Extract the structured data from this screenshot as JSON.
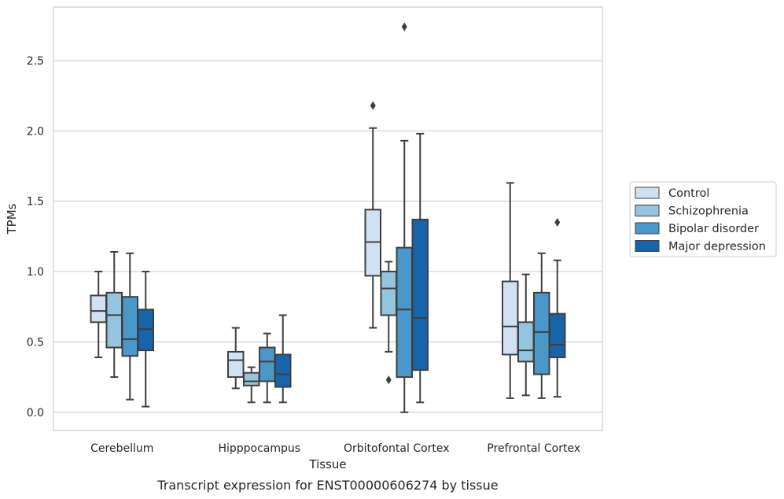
{
  "chart_data": {
    "type": "box",
    "title": "",
    "caption": "Transcript expression for ENST00000606274 by tissue",
    "xlabel": "Tissue",
    "ylabel": "TPMs",
    "ylim": [
      -0.13,
      2.88
    ],
    "yticks": [
      0.0,
      0.5,
      1.0,
      1.5,
      2.0,
      2.5
    ],
    "ytick_labels": [
      "0.0",
      "0.5",
      "1.0",
      "1.5",
      "2.0",
      "2.5"
    ],
    "grid": "horizontal",
    "legend_position": "right",
    "categories": [
      "Cerebellum",
      "Hipppocampus",
      "Orbitofontal Cortex",
      "Prefrontal Cortex"
    ],
    "series": [
      {
        "name": "Control",
        "color": "#d0e1f2",
        "boxes": [
          {
            "whislo": 0.39,
            "q1": 0.64,
            "med": 0.72,
            "q3": 0.83,
            "whishi": 1.0,
            "fliers": []
          },
          {
            "whislo": 0.17,
            "q1": 0.25,
            "med": 0.37,
            "q3": 0.43,
            "whishi": 0.6,
            "fliers": []
          },
          {
            "whislo": 0.6,
            "q1": 0.97,
            "med": 1.21,
            "q3": 1.44,
            "whishi": 2.02,
            "fliers": [
              2.18
            ]
          },
          {
            "whislo": 0.1,
            "q1": 0.41,
            "med": 0.61,
            "q3": 0.93,
            "whishi": 1.63,
            "fliers": []
          }
        ]
      },
      {
        "name": "Schizophrenia",
        "color": "#94c4df",
        "boxes": [
          {
            "whislo": 0.25,
            "q1": 0.46,
            "med": 0.69,
            "q3": 0.85,
            "whishi": 1.14,
            "fliers": []
          },
          {
            "whislo": 0.07,
            "q1": 0.19,
            "med": 0.22,
            "q3": 0.28,
            "whishi": 0.32,
            "fliers": []
          },
          {
            "whislo": 0.43,
            "q1": 0.69,
            "med": 0.88,
            "q3": 1.0,
            "whishi": 1.07,
            "fliers": [
              0.23
            ]
          },
          {
            "whislo": 0.12,
            "q1": 0.36,
            "med": 0.44,
            "q3": 0.64,
            "whishi": 0.98,
            "fliers": []
          }
        ]
      },
      {
        "name": "Bipolar disorder",
        "color": "#4a98c9",
        "boxes": [
          {
            "whislo": 0.09,
            "q1": 0.4,
            "med": 0.52,
            "q3": 0.82,
            "whishi": 1.13,
            "fliers": []
          },
          {
            "whislo": 0.07,
            "q1": 0.22,
            "med": 0.36,
            "q3": 0.46,
            "whishi": 0.56,
            "fliers": []
          },
          {
            "whislo": 0.0,
            "q1": 0.25,
            "med": 0.73,
            "q3": 1.17,
            "whishi": 1.93,
            "fliers": [
              2.74
            ]
          },
          {
            "whislo": 0.1,
            "q1": 0.27,
            "med": 0.57,
            "q3": 0.85,
            "whishi": 1.13,
            "fliers": []
          }
        ]
      },
      {
        "name": "Major depression",
        "color": "#1764ab",
        "boxes": [
          {
            "whislo": 0.04,
            "q1": 0.44,
            "med": 0.59,
            "q3": 0.73,
            "whishi": 1.0,
            "fliers": []
          },
          {
            "whislo": 0.07,
            "q1": 0.18,
            "med": 0.27,
            "q3": 0.41,
            "whishi": 0.69,
            "fliers": []
          },
          {
            "whislo": 0.07,
            "q1": 0.3,
            "med": 0.67,
            "q3": 1.37,
            "whishi": 1.98,
            "fliers": []
          },
          {
            "whislo": 0.11,
            "q1": 0.39,
            "med": 0.48,
            "q3": 0.7,
            "whishi": 1.08,
            "fliers": [
              1.35
            ]
          }
        ]
      }
    ]
  },
  "colors": {
    "line": "#3f3f3f",
    "grid": "#d3d3d3",
    "frame": "#cccccc"
  }
}
